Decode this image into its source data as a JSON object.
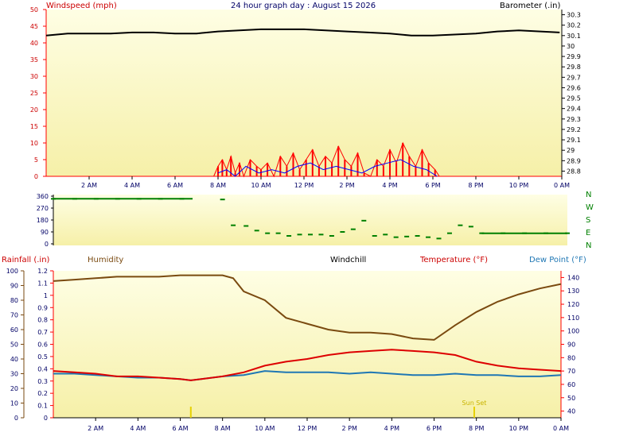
{
  "header": {
    "title": "24 hour graph day : August 15 2026",
    "left_axis_label": "Windspeed (mph)",
    "right_axis_label": "Barometer (.in)"
  },
  "bottom_header": {
    "rainfall_label": "Rainfall (.in)",
    "humidity_label": "Humidity",
    "windchill_label": "Windchill",
    "temperature_label": "Temperature (°F)",
    "dewpoint_label": "Dew Point (°F)"
  },
  "time_ticks": [
    "2 AM",
    "4 AM",
    "6 AM",
    "8 AM",
    "10 AM",
    "12 PM",
    "2 PM",
    "4 PM",
    "6 PM",
    "8 PM",
    "10 PM",
    "0 AM"
  ],
  "colors": {
    "windspeed": "#ff0000",
    "gust": "#0000ff",
    "barometer": "#000000",
    "direction": "#008000",
    "humidity": "#7a4a10",
    "temperature": "#dd0000",
    "dewpoint": "#1f77b4",
    "axis_red": "#ff0000"
  },
  "chart_data": [
    {
      "type": "line",
      "name": "wind-barometer",
      "left_axis": {
        "label": "Windspeed (mph)",
        "ticks": [
          "0",
          "5",
          "10",
          "15",
          "20",
          "25",
          "30",
          "35",
          "40",
          "45",
          "50"
        ],
        "range": [
          0,
          50
        ]
      },
      "right_axis": {
        "label": "Barometer (.in)",
        "ticks": [
          "28.8",
          "28.9",
          "29",
          "29.1",
          "29.2",
          "29.3",
          "29.4",
          "29.5",
          "29.6",
          "29.7",
          "29.8",
          "29.9",
          "30",
          "30.1",
          "30.2",
          "30.3"
        ],
        "range": [
          28.75,
          30.35
        ]
      },
      "x_range_hours": [
        0,
        24
      ],
      "barometer": {
        "x": [
          0,
          1,
          2,
          3,
          4,
          5,
          6,
          7,
          8,
          9,
          10,
          11,
          12,
          13,
          14,
          15,
          16,
          17,
          18,
          19,
          20,
          21,
          22,
          23,
          23.9
        ],
        "values": [
          30.1,
          30.12,
          30.12,
          30.12,
          30.13,
          30.13,
          30.12,
          30.12,
          30.14,
          30.15,
          30.16,
          30.16,
          30.16,
          30.15,
          30.14,
          30.13,
          30.12,
          30.1,
          30.1,
          30.11,
          30.12,
          30.14,
          30.15,
          30.14,
          30.13
        ]
      },
      "windspeed": {
        "x": [
          7.8,
          8.0,
          8.2,
          8.4,
          8.6,
          8.8,
          9.0,
          9.2,
          9.5,
          9.8,
          10.0,
          10.3,
          10.6,
          10.9,
          11.2,
          11.5,
          11.8,
          12.1,
          12.4,
          12.7,
          13.0,
          13.3,
          13.6,
          13.9,
          14.2,
          14.5,
          14.8,
          15.1,
          15.4,
          15.7,
          16.0,
          16.3,
          16.6,
          16.9,
          17.2,
          17.5,
          17.8,
          18.1,
          18.3
        ],
        "values": [
          0,
          3,
          5,
          2,
          6,
          1,
          4,
          0,
          5,
          3,
          2,
          4,
          0,
          6,
          3,
          7,
          2,
          5,
          8,
          3,
          6,
          4,
          9,
          5,
          3,
          7,
          1,
          0,
          5,
          3,
          8,
          4,
          10,
          6,
          3,
          8,
          4,
          2,
          0
        ]
      },
      "gust": {
        "x": [
          8.0,
          8.4,
          8.8,
          9.3,
          9.9,
          10.5,
          11.1,
          11.7,
          12.3,
          12.9,
          13.5,
          14.1,
          14.7,
          15.3,
          15.9,
          16.5,
          17.1,
          17.7,
          18.2
        ],
        "values": [
          1,
          2,
          0,
          3,
          1,
          2,
          1,
          3,
          4,
          2,
          3,
          2,
          1,
          3,
          4,
          5,
          3,
          2,
          0
        ]
      }
    },
    {
      "type": "scatter",
      "name": "wind-direction",
      "y_ticks": [
        "0",
        "90",
        "180",
        "270",
        "360"
      ],
      "y_range": [
        0,
        360
      ],
      "compass_labels": [
        "N",
        "W",
        "S",
        "E",
        "N"
      ],
      "x": [
        0,
        1,
        2,
        3,
        4,
        5,
        6,
        7.9,
        8.4,
        9.0,
        9.5,
        10.0,
        10.5,
        11.0,
        11.5,
        12.0,
        12.5,
        13.0,
        13.5,
        14.0,
        14.5,
        15.0,
        15.5,
        16.0,
        16.5,
        17.0,
        17.5,
        18.0,
        18.5,
        19.0,
        19.5,
        20.0,
        21.0,
        22.0,
        23.0,
        24.0
      ],
      "values": [
        340,
        340,
        340,
        340,
        340,
        340,
        340,
        335,
        140,
        135,
        100,
        80,
        80,
        60,
        70,
        70,
        70,
        60,
        90,
        110,
        175,
        60,
        70,
        50,
        55,
        60,
        50,
        40,
        80,
        140,
        130,
        80,
        80,
        80,
        80,
        80
      ]
    },
    {
      "type": "line",
      "name": "rain-humidity-temperature",
      "left_axis_rainfall": {
        "label": "Rainfall (.in)",
        "ticks": [
          "0",
          "0.1",
          "0.2",
          "0.3",
          "0.4",
          "0.5",
          "0.6",
          "0.7",
          "0.8",
          "0.9",
          "1",
          "1.1",
          "1.2"
        ],
        "range": [
          0,
          1.2
        ]
      },
      "left_axis_humidity": {
        "label": "Humidity",
        "ticks": [
          "0",
          "10",
          "20",
          "30",
          "40",
          "50",
          "60",
          "70",
          "80",
          "90",
          "100"
        ],
        "range": [
          0,
          100
        ]
      },
      "right_axis": {
        "label": "Temperature (°F)",
        "ticks": [
          "40",
          "50",
          "60",
          "70",
          "80",
          "90",
          "100",
          "110",
          "120",
          "130",
          "140"
        ],
        "range": [
          35,
          145
        ]
      },
      "annotation": "Sun Set",
      "x_range_hours": [
        0,
        24
      ],
      "humidity": {
        "x": [
          0,
          1,
          2,
          3,
          4,
          5,
          6,
          7,
          8,
          8.5,
          9,
          10,
          11,
          12,
          13,
          14,
          15,
          16,
          17,
          18,
          19,
          20,
          21,
          22,
          23,
          24
        ],
        "values": [
          93,
          94,
          95,
          96,
          96,
          96,
          97,
          97,
          97,
          95,
          86,
          80,
          68,
          64,
          60,
          58,
          58,
          57,
          54,
          53,
          63,
          72,
          79,
          84,
          88,
          91
        ]
      },
      "temperature": {
        "x": [
          0,
          1,
          2,
          3,
          4,
          5,
          6,
          6.5,
          7,
          8,
          9,
          10,
          11,
          12,
          13,
          14,
          15,
          16,
          17,
          18,
          19,
          20,
          21,
          22,
          23,
          24
        ],
        "values": [
          70,
          69,
          68,
          66,
          66,
          65,
          64,
          63,
          64,
          66,
          69,
          74,
          77,
          79,
          82,
          84,
          85,
          86,
          85,
          84,
          82,
          77,
          74,
          72,
          71,
          70
        ]
      },
      "dewpoint": {
        "x": [
          0,
          1,
          2,
          3,
          4,
          5,
          6,
          6.5,
          7,
          8,
          9,
          10,
          11,
          12,
          13,
          14,
          15,
          16,
          17,
          18,
          19,
          20,
          21,
          22,
          23,
          24
        ],
        "values": [
          68,
          68,
          67,
          66,
          65,
          65,
          64,
          63,
          64,
          66,
          67,
          70,
          69,
          69,
          69,
          68,
          69,
          68,
          67,
          67,
          68,
          67,
          67,
          66,
          66,
          67
        ]
      }
    }
  ]
}
